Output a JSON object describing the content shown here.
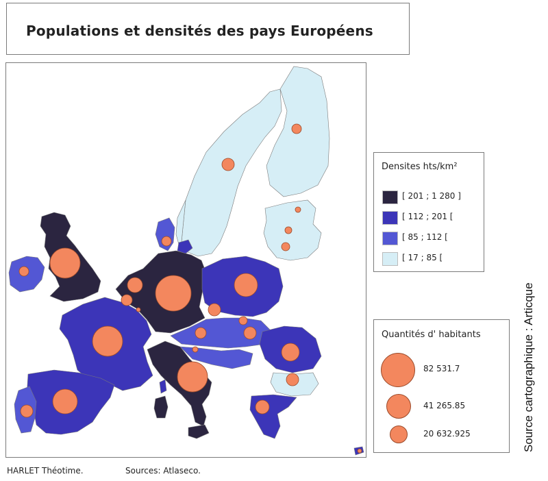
{
  "title": "Populations et densités des pays Européens",
  "colors": {
    "dens_very_high": "#2b2540",
    "dens_high": "#3c35b8",
    "dens_mid": "#5357d4",
    "dens_low": "#d6eef6",
    "population_circle": "#f3875e"
  },
  "legend_density": {
    "title": "Densites hts/km²",
    "items": [
      {
        "label": "[ 201 ; 1 280 ]",
        "color": "#2b2540"
      },
      {
        "label": "[ 112 ; 201 [",
        "color": "#3c35b8"
      },
      {
        "label": "[ 85 ; 112 [",
        "color": "#5357d4"
      },
      {
        "label": "[ 17 ; 85 [",
        "color": "#d6eef6"
      }
    ]
  },
  "legend_population": {
    "title": "Quantités d' habitants",
    "items": [
      {
        "label": "82 531.7",
        "value": 82531.7
      },
      {
        "label": "41 265.85",
        "value": 41265.85
      },
      {
        "label": "20 632.925",
        "value": 20632.925
      }
    ]
  },
  "side_source": "Source cartographique : Articque",
  "footer": {
    "author": "HARLET Théotime.",
    "sources": "Sources: Atlaseco."
  }
}
